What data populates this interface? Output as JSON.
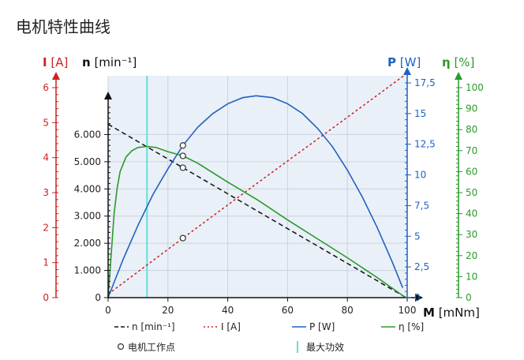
{
  "page": {
    "title": "电机特性曲线"
  },
  "colors": {
    "I": "#cc2222",
    "n": "#111111",
    "P": "#1f63c0",
    "eta": "#2a9a2a",
    "plot_bg": "#eaf0f8",
    "grid": "#c9d3e0",
    "max_power_line": "#66dddd"
  },
  "chart_data": {
    "type": "line",
    "x": {
      "label": "M",
      "unit": "[mNm]",
      "range": [
        0,
        100
      ],
      "ticks": [
        0,
        20,
        40,
        60,
        80,
        100
      ],
      "tick_labels": [
        "0",
        "20",
        "40",
        "60",
        "80",
        "100"
      ]
    },
    "y_axes": {
      "I": {
        "label": "I",
        "unit": "[A]",
        "range": [
          0,
          6
        ],
        "ticks": [
          0,
          1,
          2,
          3,
          4,
          5,
          6
        ],
        "tick_labels": [
          "0",
          "1",
          "2",
          "3",
          "4",
          "5",
          "6"
        ],
        "position": "far-left"
      },
      "n": {
        "label": "n",
        "unit": "[min⁻¹]",
        "range": [
          0,
          7000
        ],
        "ticks": [
          0,
          1000,
          2000,
          3000,
          4000,
          5000,
          6000
        ],
        "tick_labels": [
          "0",
          "1.000",
          "2.000",
          "3.000",
          "4.000",
          "5.000",
          "6.000"
        ],
        "position": "left"
      },
      "P": {
        "label": "P",
        "unit": "[W]",
        "range": [
          0,
          17.5
        ],
        "ticks": [
          0,
          2.5,
          5,
          7.5,
          10,
          12.5,
          15,
          17.5
        ],
        "tick_labels": [
          "0",
          "2,5",
          "5",
          "7,5",
          "10",
          "12,5",
          "15",
          "17,5"
        ],
        "position": "right"
      },
      "eta": {
        "label": "η",
        "unit": "[%]",
        "range": [
          0,
          100
        ],
        "ticks": [
          0,
          10,
          20,
          30,
          40,
          50,
          60,
          70,
          80,
          90,
          100
        ],
        "tick_labels": [
          "0",
          "10",
          "20",
          "30",
          "40",
          "50",
          "60",
          "70",
          "80",
          "90",
          "100"
        ],
        "position": "far-right"
      }
    },
    "series": [
      {
        "key": "n",
        "name": "n [min⁻¹]",
        "axis": "n",
        "style": "dashed",
        "points": [
          [
            0,
            6380
          ],
          [
            10,
            5740
          ],
          [
            20,
            5100
          ],
          [
            25,
            4780
          ],
          [
            40,
            3820
          ],
          [
            60,
            2540
          ],
          [
            80,
            1260
          ],
          [
            99.5,
            10
          ]
        ]
      },
      {
        "key": "I",
        "name": "I [A]",
        "axis": "I",
        "style": "dotted",
        "points": [
          [
            0,
            0.1
          ],
          [
            25,
            1.7
          ],
          [
            50,
            3.28
          ],
          [
            75,
            4.84
          ],
          [
            99,
            6.35
          ]
        ]
      },
      {
        "key": "P",
        "name": "P [W]",
        "axis": "P",
        "style": "solid",
        "points": [
          [
            0,
            0
          ],
          [
            5,
            3.1
          ],
          [
            10,
            5.9
          ],
          [
            15,
            8.4
          ],
          [
            20,
            10.5
          ],
          [
            25,
            12.4
          ],
          [
            30,
            13.9
          ],
          [
            35,
            15.0
          ],
          [
            40,
            15.8
          ],
          [
            45,
            16.3
          ],
          [
            49.5,
            16.45
          ],
          [
            55,
            16.3
          ],
          [
            60,
            15.8
          ],
          [
            65,
            15.0
          ],
          [
            70,
            13.8
          ],
          [
            75,
            12.3
          ],
          [
            80,
            10.4
          ],
          [
            85,
            8.2
          ],
          [
            90,
            5.7
          ],
          [
            95,
            2.9
          ],
          [
            98.5,
            0.8
          ]
        ]
      },
      {
        "key": "eta",
        "name": "η [%]",
        "axis": "eta",
        "style": "solid",
        "points": [
          [
            0,
            0
          ],
          [
            1,
            20
          ],
          [
            2,
            40
          ],
          [
            3,
            52
          ],
          [
            4,
            60
          ],
          [
            6,
            67
          ],
          [
            8,
            70
          ],
          [
            10,
            71.5
          ],
          [
            13,
            72
          ],
          [
            16,
            71.5
          ],
          [
            20,
            69.5
          ],
          [
            25,
            67.5
          ],
          [
            30,
            64
          ],
          [
            40,
            55
          ],
          [
            50,
            46.5
          ],
          [
            60,
            37
          ],
          [
            70,
            28
          ],
          [
            80,
            19
          ],
          [
            90,
            9.5
          ],
          [
            99.5,
            0
          ]
        ]
      }
    ],
    "operating_point": {
      "label": "电机工作点",
      "M": 25,
      "markers": [
        {
          "axis": "n",
          "value": 4780
        },
        {
          "axis": "P",
          "value": 12.4
        },
        {
          "axis": "eta",
          "value": 67.5
        },
        {
          "axis": "I",
          "value": 1.7
        }
      ]
    },
    "max_power_line": {
      "label": "最大功效",
      "M": 13
    },
    "legend_position": "bottom"
  }
}
